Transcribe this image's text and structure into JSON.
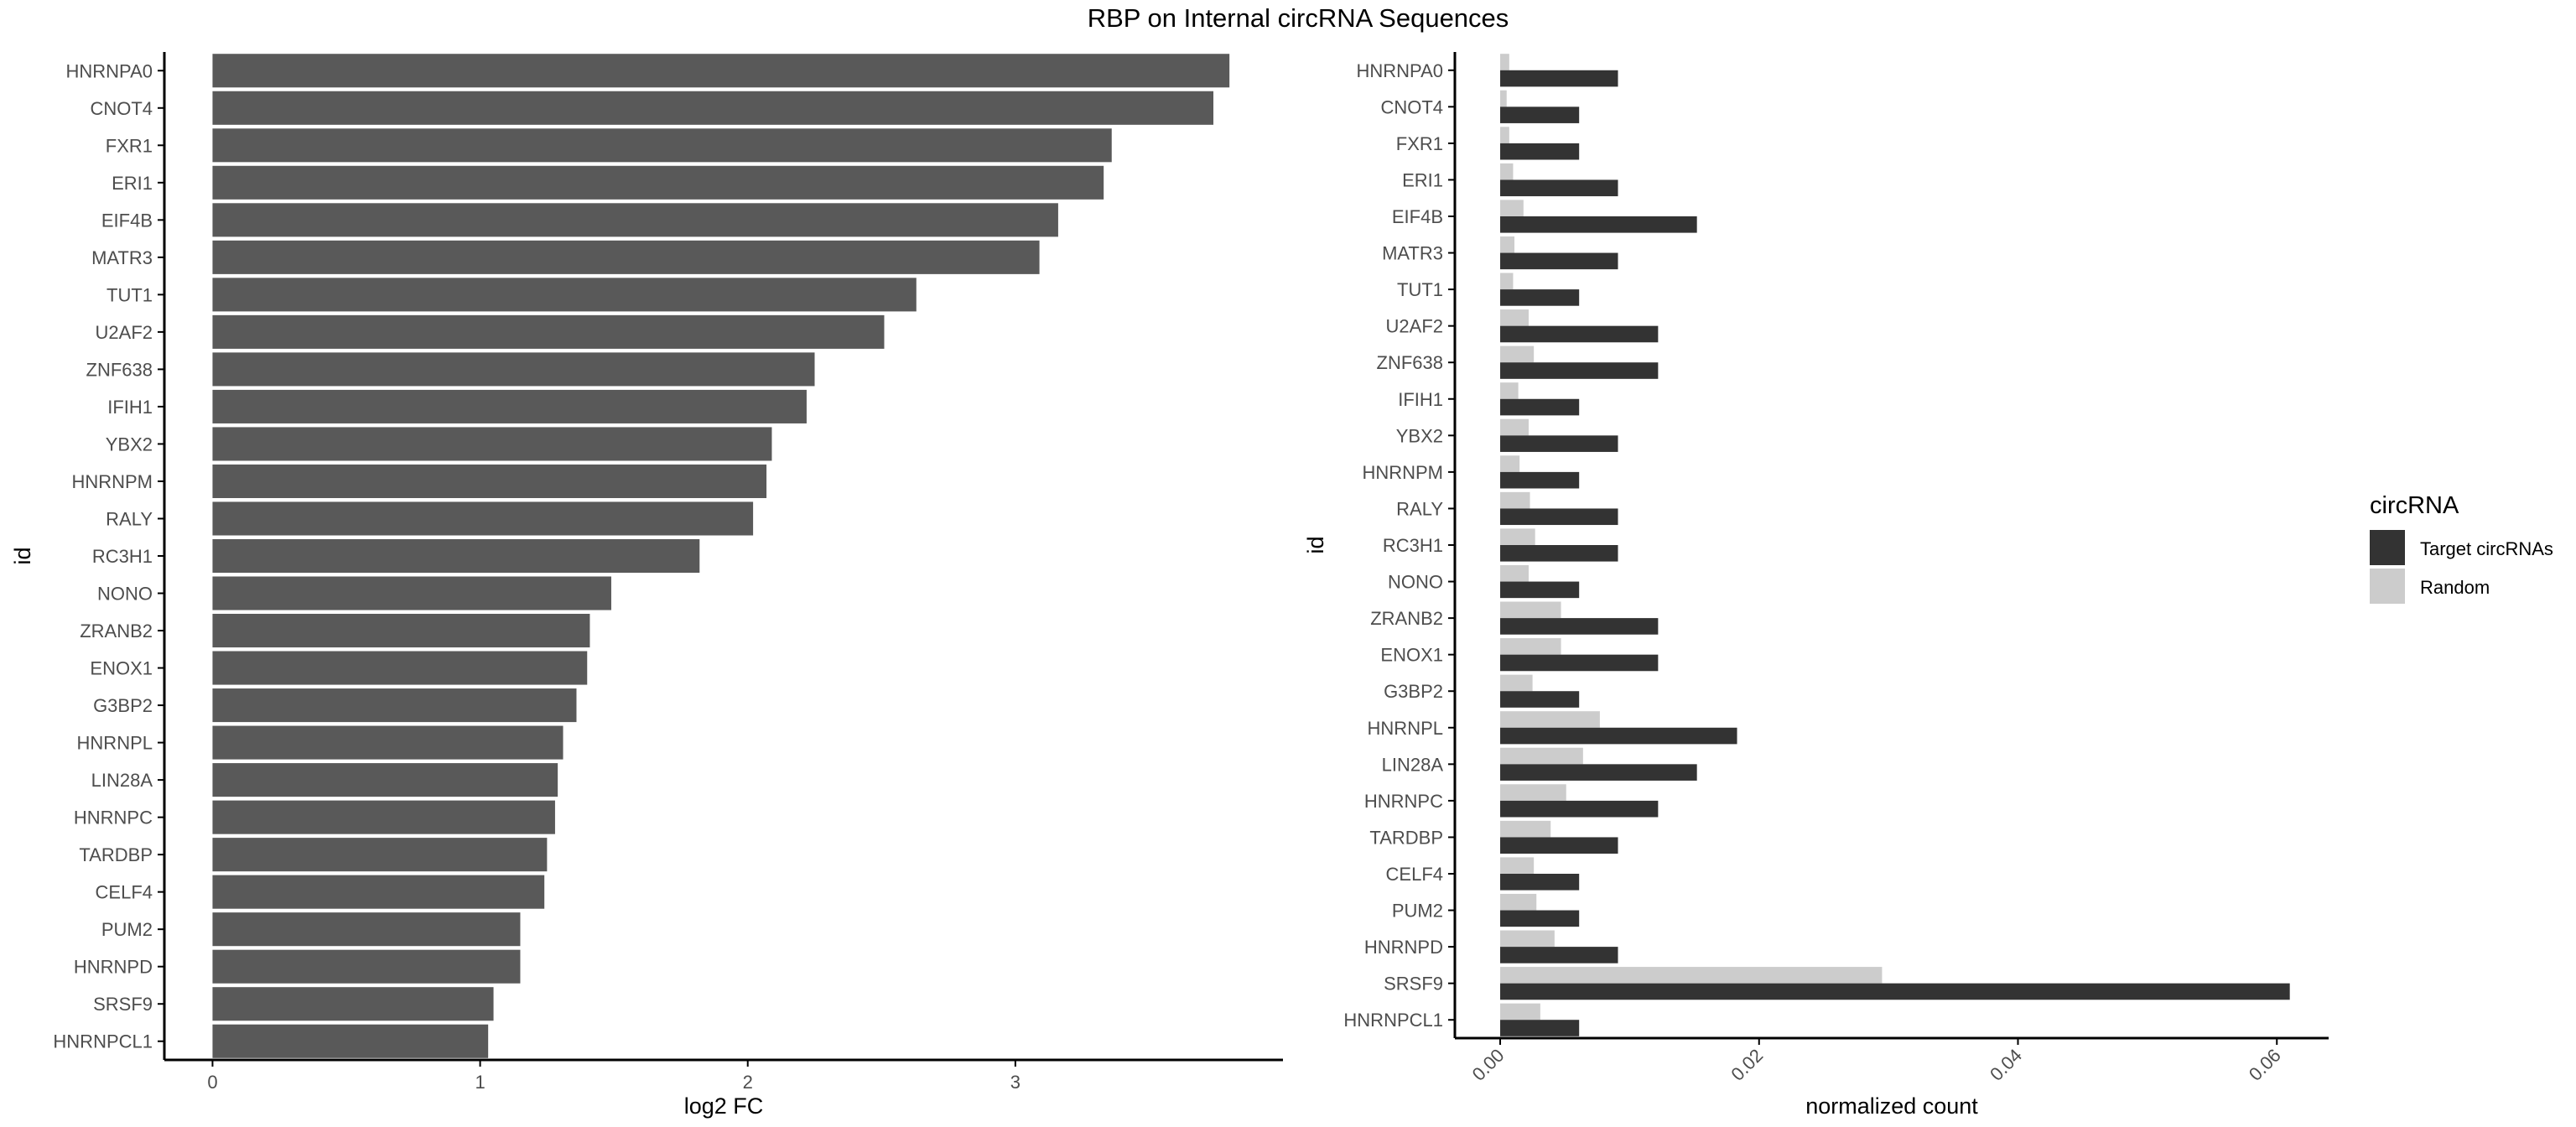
{
  "title": "RBP on Internal circRNA Sequences",
  "colors": {
    "left_bar": "#595959",
    "target": "#333333",
    "random": "#cccccc",
    "axis": "#000000",
    "tick_text": "#4d4d4d"
  },
  "chart_data": [
    {
      "type": "bar",
      "orientation": "horizontal",
      "xlabel": "log2 FC",
      "ylabel": "id",
      "xlim": [
        -0.18,
        4.0
      ],
      "xticks": [
        0,
        1,
        2,
        3
      ],
      "grid": false,
      "categories": [
        "HNRNPA0",
        "CNOT4",
        "FXR1",
        "ERI1",
        "EIF4B",
        "MATR3",
        "TUT1",
        "U2AF2",
        "ZNF638",
        "IFIH1",
        "YBX2",
        "HNRNPM",
        "RALY",
        "RC3H1",
        "NONO",
        "ZRANB2",
        "ENOX1",
        "G3BP2",
        "HNRNPL",
        "LIN28A",
        "HNRNPC",
        "TARDBP",
        "CELF4",
        "PUM2",
        "HNRNPD",
        "SRSF9",
        "HNRNPCL1"
      ],
      "values": [
        3.8,
        3.74,
        3.36,
        3.33,
        3.16,
        3.09,
        2.63,
        2.51,
        2.25,
        2.22,
        2.09,
        2.07,
        2.02,
        1.82,
        1.49,
        1.41,
        1.4,
        1.36,
        1.31,
        1.29,
        1.28,
        1.25,
        1.24,
        1.15,
        1.15,
        1.05,
        1.03
      ]
    },
    {
      "type": "bar",
      "orientation": "horizontal",
      "grouped": true,
      "xlabel": "normalized count",
      "ylabel": "id",
      "xlim": [
        -0.0035,
        0.064
      ],
      "xticks": [
        0.0,
        0.02,
        0.04,
        0.06
      ],
      "xtick_labels": [
        "0.00",
        "0.02",
        "0.04",
        "0.06"
      ],
      "grid": false,
      "legend": {
        "title": "circRNA",
        "placement": "right"
      },
      "categories": [
        "HNRNPA0",
        "CNOT4",
        "FXR1",
        "ERI1",
        "EIF4B",
        "MATR3",
        "TUT1",
        "U2AF2",
        "ZNF638",
        "IFIH1",
        "YBX2",
        "HNRNPM",
        "RALY",
        "RC3H1",
        "NONO",
        "ZRANB2",
        "ENOX1",
        "G3BP2",
        "HNRNPL",
        "LIN28A",
        "HNRNPC",
        "TARDBP",
        "CELF4",
        "PUM2",
        "HNRNPD",
        "SRSF9",
        "HNRNPCL1"
      ],
      "series": [
        {
          "name": "Target circRNAs",
          "color": "#333333",
          "values": [
            0.0091,
            0.0061,
            0.0061,
            0.0091,
            0.0152,
            0.0091,
            0.0061,
            0.0122,
            0.0122,
            0.0061,
            0.0091,
            0.0061,
            0.0091,
            0.0091,
            0.0061,
            0.0122,
            0.0122,
            0.0061,
            0.0183,
            0.0152,
            0.0122,
            0.0091,
            0.0061,
            0.0061,
            0.0091,
            0.061,
            0.0061
          ]
        },
        {
          "name": "Random",
          "color": "#cccccc",
          "values": [
            0.0007,
            0.0005,
            0.0007,
            0.001,
            0.0018,
            0.0011,
            0.001,
            0.0022,
            0.0026,
            0.0014,
            0.0022,
            0.0015,
            0.0023,
            0.0027,
            0.0022,
            0.0047,
            0.0047,
            0.0025,
            0.0077,
            0.0064,
            0.0051,
            0.0039,
            0.0026,
            0.0028,
            0.0042,
            0.0295,
            0.0031
          ]
        }
      ]
    }
  ]
}
